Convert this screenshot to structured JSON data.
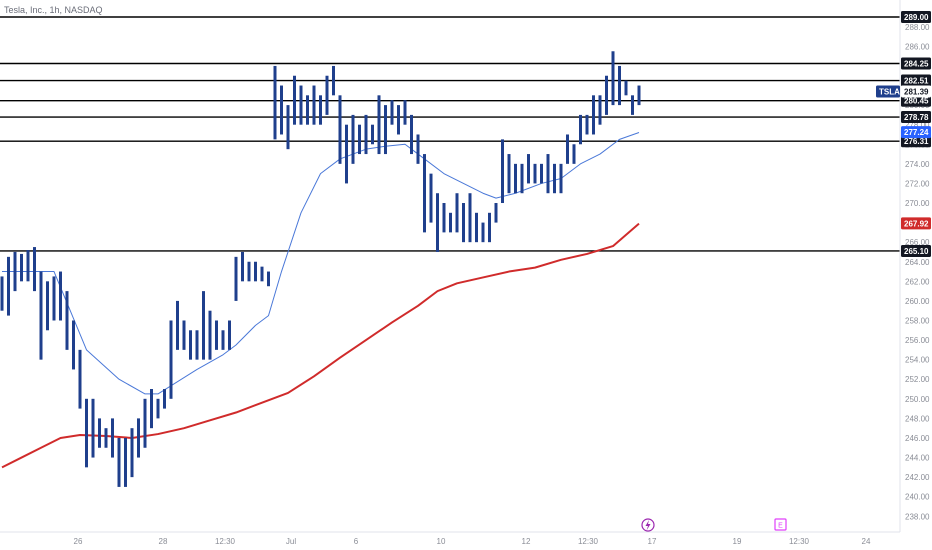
{
  "header": {
    "symbol_title": "Tesla, Inc., 1h, NASDAQ"
  },
  "colors": {
    "bar": "#1f3f8c",
    "ma_fast": "#4a78d8",
    "ma_slow": "#d02b2b",
    "level_line": "#000000",
    "ticker_tag": "#1f3f8c",
    "ma_fast_tag": "#2962ff",
    "ma_slow_tag": "#d02b2b",
    "event_dividend": "#9c27b0",
    "event_earnings": "#e040fb"
  },
  "icons": {
    "event_1": "lightning-icon",
    "event_2": "earnings-e-icon"
  },
  "chart_data": {
    "type": "bar",
    "title": "Tesla, Inc., 1h, NASDAQ",
    "ticker": "TSLA",
    "ylim": [
      237.5,
      289.5
    ],
    "y_ticks": [
      238,
      240,
      242,
      244,
      246,
      248,
      250,
      252,
      254,
      256,
      258,
      260,
      262,
      264,
      266,
      268,
      270,
      272,
      274,
      276,
      278,
      280,
      282,
      284,
      286,
      288
    ],
    "x_ticks": [
      "26",
      "28",
      "12:30",
      "Jul",
      "6",
      "10",
      "12",
      "12:30",
      "17",
      "19",
      "12:30",
      "24"
    ],
    "last_price": 281.39,
    "levels": [
      289.0,
      284.25,
      282.51,
      280.45,
      278.78,
      276.31,
      265.1
    ],
    "level_labels": [
      "289.00",
      "284.25",
      "282.51",
      "280.45",
      "278.78",
      "276.31",
      "265.10"
    ],
    "ticker_tag_label": "TSLA",
    "last_price_label": "281.39",
    "ma_fast_value_label": "277.24",
    "ma_slow_value_label": "267.92",
    "bars": [
      [
        262.5,
        259.0
      ],
      [
        264.5,
        258.5
      ],
      [
        265.0,
        261.0
      ],
      [
        264.8,
        262.0
      ],
      [
        265.2,
        262.0
      ],
      [
        265.5,
        261.0
      ],
      [
        263.0,
        254.0
      ],
      [
        262.0,
        257.0
      ],
      [
        262.5,
        258.0
      ],
      [
        263.0,
        258.0
      ],
      [
        261.0,
        255.0
      ],
      [
        258.0,
        253.0
      ],
      [
        255.0,
        249.0
      ],
      [
        250.0,
        243.0
      ],
      [
        250.0,
        244.0
      ],
      [
        248.0,
        245.0
      ],
      [
        247.0,
        245.0
      ],
      [
        248.0,
        244.0
      ],
      [
        246.0,
        241.0
      ],
      [
        246.0,
        241.0
      ],
      [
        247.0,
        242.0
      ],
      [
        248.0,
        244.0
      ],
      [
        250.0,
        245.0
      ],
      [
        251.0,
        247.0
      ],
      [
        250.0,
        248.0
      ],
      [
        251.0,
        249.0
      ],
      [
        258.0,
        250.0
      ],
      [
        260.0,
        255.0
      ],
      [
        258.0,
        255.0
      ],
      [
        257.0,
        254.0
      ],
      [
        257.0,
        254.0
      ],
      [
        261.0,
        254.0
      ],
      [
        259.0,
        254.0
      ],
      [
        258.0,
        255.0
      ],
      [
        257.0,
        255.0
      ],
      [
        258.0,
        255.0
      ],
      [
        264.5,
        260.0
      ],
      [
        265.0,
        262.0
      ],
      [
        264.0,
        262.0
      ],
      [
        264.0,
        262.0
      ],
      [
        263.5,
        262.0
      ],
      [
        263.0,
        261.5
      ],
      [
        284.0,
        276.5
      ],
      [
        282.0,
        277.0
      ],
      [
        280.0,
        275.5
      ],
      [
        283.0,
        278.0
      ],
      [
        282.0,
        278.0
      ],
      [
        281.0,
        278.0
      ],
      [
        282.0,
        278.0
      ],
      [
        281.0,
        278.0
      ],
      [
        283.0,
        279.0
      ],
      [
        284.0,
        281.0
      ],
      [
        281.0,
        274.0
      ],
      [
        278.0,
        272.0
      ],
      [
        279.0,
        274.0
      ],
      [
        278.0,
        275.0
      ],
      [
        279.0,
        275.0
      ],
      [
        278.0,
        276.0
      ],
      [
        281.0,
        275.0
      ],
      [
        280.0,
        275.0
      ],
      [
        280.5,
        278.0
      ],
      [
        280.0,
        277.0
      ],
      [
        280.5,
        278.0
      ],
      [
        279.0,
        275.0
      ],
      [
        277.0,
        274.0
      ],
      [
        275.0,
        267.0
      ],
      [
        273.0,
        268.0
      ],
      [
        271.0,
        265.0
      ],
      [
        270.0,
        267.0
      ],
      [
        269.0,
        267.0
      ],
      [
        271.0,
        267.0
      ],
      [
        270.0,
        266.0
      ],
      [
        271.0,
        266.0
      ],
      [
        269.0,
        266.0
      ],
      [
        268.0,
        266.0
      ],
      [
        269.0,
        266.0
      ],
      [
        270.0,
        268.0
      ],
      [
        276.5,
        270.0
      ],
      [
        275.0,
        271.0
      ],
      [
        274.0,
        271.0
      ],
      [
        274.0,
        271.0
      ],
      [
        275.0,
        272.0
      ],
      [
        274.0,
        272.0
      ],
      [
        274.0,
        272.0
      ],
      [
        275.0,
        271.0
      ],
      [
        274.0,
        271.0
      ],
      [
        274.0,
        271.0
      ],
      [
        277.0,
        274.0
      ],
      [
        276.0,
        274.0
      ],
      [
        279.0,
        276.0
      ],
      [
        279.0,
        277.0
      ],
      [
        281.0,
        277.0
      ],
      [
        281.0,
        278.0
      ],
      [
        283.0,
        279.0
      ],
      [
        285.5,
        280.0
      ],
      [
        284.0,
        280.0
      ],
      [
        282.5,
        281.0
      ],
      [
        281.0,
        279.0
      ],
      [
        282.0,
        280.0
      ]
    ],
    "ma_fast": [
      [
        0,
        263.0
      ],
      [
        8,
        263.0
      ],
      [
        13,
        255.0
      ],
      [
        18,
        252.0
      ],
      [
        22,
        250.5
      ],
      [
        24,
        250.5
      ],
      [
        30,
        253.0
      ],
      [
        34,
        254.5
      ],
      [
        36,
        255.5
      ],
      [
        39,
        257.5
      ],
      [
        41,
        258.5
      ],
      [
        43,
        263.0
      ],
      [
        46,
        269.0
      ],
      [
        49,
        273.0
      ],
      [
        52,
        274.5
      ],
      [
        56,
        275.5
      ],
      [
        59,
        275.8
      ],
      [
        62,
        276.0
      ],
      [
        65,
        274.5
      ],
      [
        68,
        273.0
      ],
      [
        71,
        272.0
      ],
      [
        74,
        271.0
      ],
      [
        76,
        270.5
      ],
      [
        79,
        271.0
      ],
      [
        83,
        272.0
      ],
      [
        86,
        272.5
      ],
      [
        89,
        274.0
      ],
      [
        92,
        275.0
      ],
      [
        95,
        276.5
      ],
      [
        98,
        277.2
      ]
    ],
    "ma_slow": [
      [
        0,
        243.0
      ],
      [
        3,
        244.0
      ],
      [
        6,
        245.0
      ],
      [
        9,
        246.0
      ],
      [
        12,
        246.3
      ],
      [
        16,
        246.2
      ],
      [
        20,
        246.0
      ],
      [
        24,
        246.4
      ],
      [
        28,
        247.0
      ],
      [
        32,
        247.8
      ],
      [
        36,
        248.6
      ],
      [
        40,
        249.6
      ],
      [
        44,
        250.6
      ],
      [
        48,
        252.3
      ],
      [
        52,
        254.2
      ],
      [
        56,
        256.0
      ],
      [
        60,
        257.8
      ],
      [
        64,
        259.5
      ],
      [
        67,
        261.0
      ],
      [
        70,
        261.8
      ],
      [
        74,
        262.4
      ],
      [
        78,
        263.0
      ],
      [
        82,
        263.4
      ],
      [
        86,
        264.2
      ],
      [
        90,
        264.8
      ],
      [
        94,
        265.6
      ],
      [
        98,
        267.9
      ]
    ]
  }
}
